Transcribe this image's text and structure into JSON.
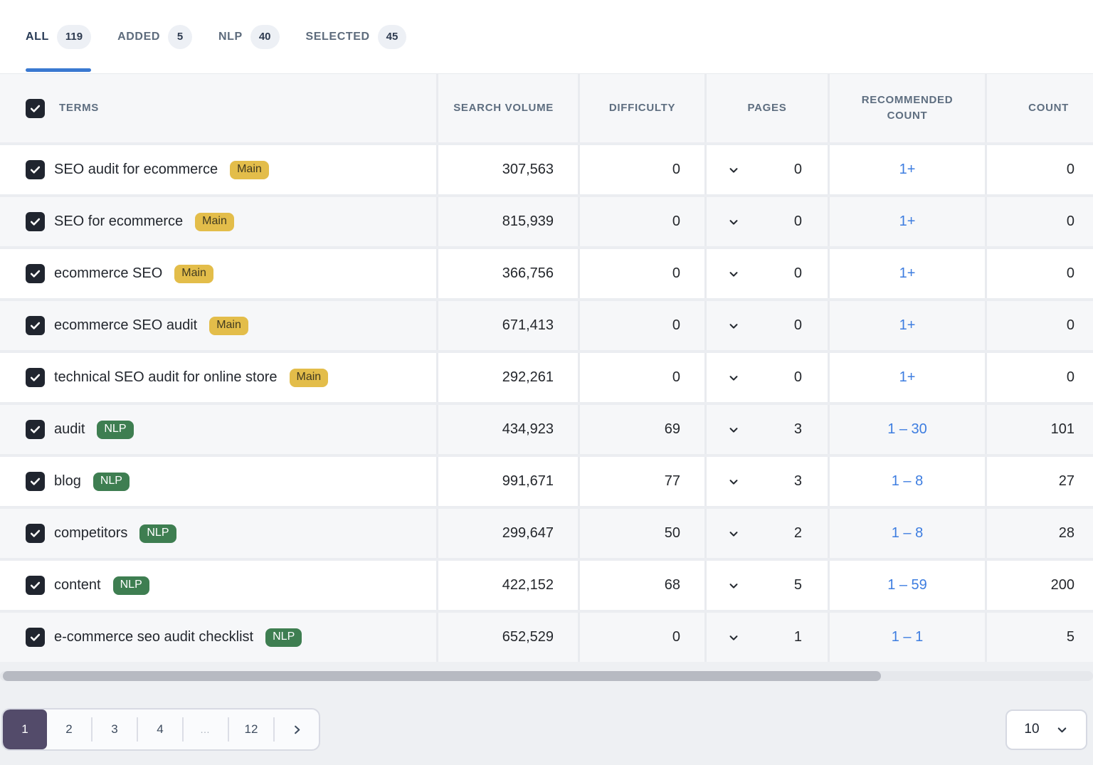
{
  "tabs": [
    {
      "label": "ALL",
      "count": "119",
      "active": true
    },
    {
      "label": "ADDED",
      "count": "5",
      "active": false
    },
    {
      "label": "NLP",
      "count": "40",
      "active": false
    },
    {
      "label": "SELECTED",
      "count": "45",
      "active": false
    }
  ],
  "table": {
    "headers": {
      "terms": "TERMS",
      "search_volume": "SEARCH VOLUME",
      "difficulty": "DIFFICULTY",
      "pages": "PAGES",
      "recommended_count": "RECOMMENDED COUNT",
      "count": "COUNT"
    },
    "rows": [
      {
        "term": "SEO audit for ecommerce",
        "badge": "Main",
        "badge_type": "main",
        "checked": true,
        "search_volume": "307,563",
        "difficulty": "0",
        "pages": "0",
        "recommended": "1+",
        "count": "0"
      },
      {
        "term": "SEO for ecommerce",
        "badge": "Main",
        "badge_type": "main",
        "checked": true,
        "search_volume": "815,939",
        "difficulty": "0",
        "pages": "0",
        "recommended": "1+",
        "count": "0"
      },
      {
        "term": "ecommerce SEO",
        "badge": "Main",
        "badge_type": "main",
        "checked": true,
        "search_volume": "366,756",
        "difficulty": "0",
        "pages": "0",
        "recommended": "1+",
        "count": "0"
      },
      {
        "term": "ecommerce SEO audit",
        "badge": "Main",
        "badge_type": "main",
        "checked": true,
        "search_volume": "671,413",
        "difficulty": "0",
        "pages": "0",
        "recommended": "1+",
        "count": "0"
      },
      {
        "term": "technical SEO audit for online store",
        "badge": "Main",
        "badge_type": "main",
        "checked": true,
        "search_volume": "292,261",
        "difficulty": "0",
        "pages": "0",
        "recommended": "1+",
        "count": "0"
      },
      {
        "term": "audit",
        "badge": "NLP",
        "badge_type": "nlp",
        "checked": true,
        "search_volume": "434,923",
        "difficulty": "69",
        "pages": "3",
        "recommended": "1 – 30",
        "count": "101"
      },
      {
        "term": "blog",
        "badge": "NLP",
        "badge_type": "nlp",
        "checked": true,
        "search_volume": "991,671",
        "difficulty": "77",
        "pages": "3",
        "recommended": "1 – 8",
        "count": "27"
      },
      {
        "term": "competitors",
        "badge": "NLP",
        "badge_type": "nlp",
        "checked": true,
        "search_volume": "299,647",
        "difficulty": "50",
        "pages": "2",
        "recommended": "1 – 8",
        "count": "28"
      },
      {
        "term": "content",
        "badge": "NLP",
        "badge_type": "nlp",
        "checked": true,
        "search_volume": "422,152",
        "difficulty": "68",
        "pages": "5",
        "recommended": "1 – 59",
        "count": "200"
      },
      {
        "term": "e-commerce seo audit checklist",
        "badge": "NLP",
        "badge_type": "nlp",
        "checked": true,
        "search_volume": "652,529",
        "difficulty": "0",
        "pages": "1",
        "recommended": "1 – 1",
        "count": "5"
      }
    ]
  },
  "pagination": {
    "pages": [
      "1",
      "2",
      "3",
      "4",
      "…",
      "12"
    ],
    "active_page": "1"
  },
  "page_size": {
    "value": "10"
  },
  "colors": {
    "accent_blue": "#3a79d1",
    "link_blue": "#3d7de0",
    "badge_main_bg": "#e3bd4a",
    "badge_main_text": "#413a20",
    "badge_nlp_bg": "#3e7e51",
    "badge_nlp_text": "#ffffff",
    "active_page_bg": "#534b6a",
    "checkbox_bg": "#20252f"
  }
}
